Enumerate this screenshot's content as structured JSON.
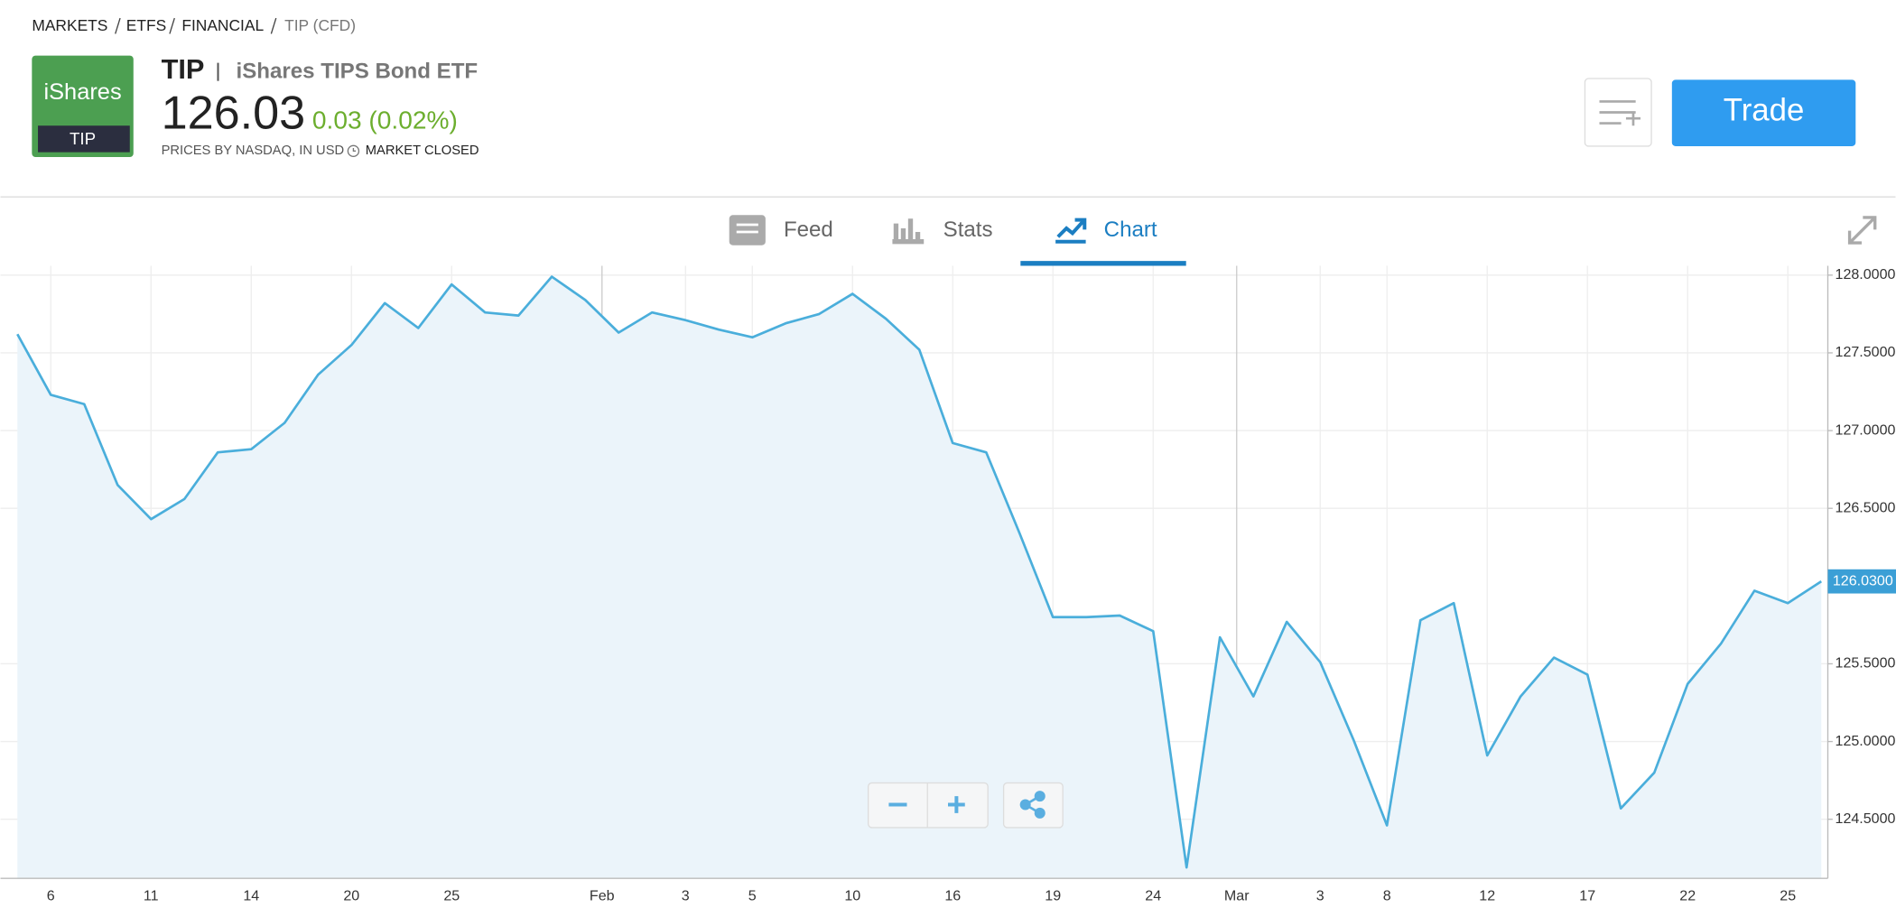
{
  "breadcrumb": [
    "MARKETS",
    "ETFS",
    "FINANCIAL",
    "TIP (CFD)"
  ],
  "logo": {
    "brand": "iShares",
    "ticker": "TIP"
  },
  "header": {
    "ticker": "TIP",
    "name": "iShares TIPS Bond ETF",
    "price": "126.03",
    "change": "0.03 (0.02%)",
    "source": "PRICES BY NASDAQ, IN USD",
    "status": "MARKET CLOSED"
  },
  "trade_button": "Trade",
  "tabs": [
    "Feed",
    "Stats",
    "Chart"
  ],
  "chart_data": {
    "type": "area",
    "color": "#4aaedb",
    "fill": "#ebf4fa",
    "grid": true,
    "categories": [
      null,
      "6",
      null,
      null,
      "11",
      null,
      null,
      "14",
      null,
      null,
      "20",
      null,
      null,
      "25",
      null,
      null,
      null,
      null,
      "Feb",
      null,
      "3",
      null,
      "5",
      null,
      null,
      "10",
      null,
      null,
      "16",
      null,
      null,
      "19",
      null,
      null,
      "24",
      null,
      null,
      "Mar",
      null,
      "3",
      null,
      "8",
      null,
      null,
      "12",
      null,
      null,
      "17",
      null,
      null,
      "22",
      null,
      null,
      "25",
      null
    ],
    "values": [
      127.62,
      127.23,
      127.17,
      126.65,
      126.43,
      126.56,
      126.86,
      126.88,
      127.05,
      127.36,
      127.55,
      127.82,
      127.66,
      127.94,
      127.76,
      127.74,
      127.99,
      127.84,
      127.63,
      127.76,
      127.71,
      127.65,
      127.6,
      127.69,
      127.75,
      127.88,
      127.72,
      127.52,
      126.92,
      126.86,
      126.34,
      125.8,
      125.8,
      125.81,
      125.71,
      124.19,
      125.67,
      125.29,
      125.77,
      125.51,
      125.01,
      124.46,
      125.78,
      125.89,
      124.91,
      125.29,
      125.54,
      125.43,
      124.57,
      124.8,
      125.37,
      125.63,
      125.97,
      125.89,
      126.03
    ],
    "last_value_label": "126.0300",
    "ylim": [
      124.12,
      128.06
    ],
    "yticks": [
      {
        "value": 128,
        "label": "128.0000"
      },
      {
        "value": 127.5,
        "label": "127.5000"
      },
      {
        "value": 127,
        "label": "127.0000"
      },
      {
        "value": 126.5,
        "label": "126.5000"
      },
      {
        "value": 125.5,
        "label": "125.5000"
      },
      {
        "value": 125,
        "label": "125.0000"
      },
      {
        "value": 124.5,
        "label": "124.5000"
      }
    ]
  }
}
